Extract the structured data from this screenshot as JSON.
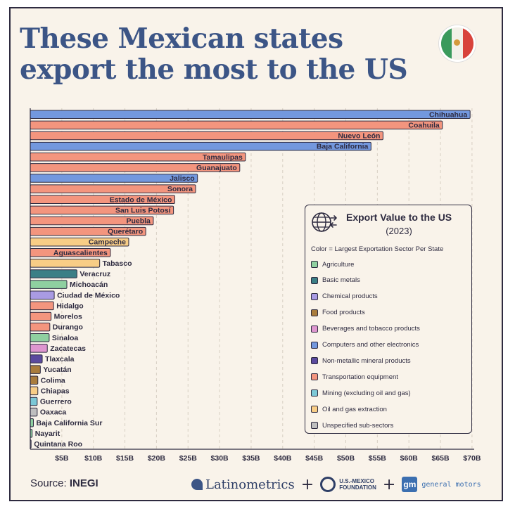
{
  "title_line1": "These Mexican states",
  "title_line2": "export the most to the US",
  "source_label": "Source:",
  "source_name": "INEGI",
  "logos": {
    "latinometrics": "Latinometrics",
    "plus": "+",
    "foundation_line1": "U.S.-MEXICO",
    "foundation_line2": "FOUNDATION",
    "gm_mark": "gm",
    "gm_text": "general motors"
  },
  "legend": {
    "title": "Export Value to the US",
    "year": "(2023)",
    "note": "Color = Largest Exportation Sector Per State"
  },
  "sector_colors": {
    "Agriculture": "#8fd0a0",
    "Basic metals": "#3b7f86",
    "Chemical products": "#a99be3",
    "Food products": "#a97c3c",
    "Beverages and tobacco products": "#de96cf",
    "Computers and other electronics": "#7398de",
    "Non-metallic mineral products": "#5b4a9e",
    "Transportation equipment": "#f3957e",
    "Mining (excluding oil and gas)": "#7cc8d6",
    "Oil and gas extraction": "#f8cd86",
    "Unspecified sub-sectors": "#bfbfbf"
  },
  "chart_data": {
    "type": "bar",
    "orientation": "horizontal",
    "title": "These Mexican states export the most to the US",
    "xlabel": "Export Value to the US (2023)",
    "xlim": [
      0,
      70
    ],
    "xticks": [
      "$5B",
      "$10B",
      "$15B",
      "$20B",
      "$25B",
      "$30B",
      "$35B",
      "$40B",
      "$45B",
      "$50B",
      "$55B",
      "$60B",
      "$65B",
      "$70B"
    ],
    "xtick_values": [
      5,
      10,
      15,
      20,
      25,
      30,
      35,
      40,
      45,
      50,
      55,
      60,
      65,
      70
    ],
    "categories": [
      "Chihuahua",
      "Coahuila",
      "Nuevo León",
      "Baja California",
      "Tamaulipas",
      "Guanajuato",
      "Jalisco",
      "Sonora",
      "Estado de México",
      "San Luis Potosí",
      "Puebla",
      "Querétaro",
      "Campeche",
      "Aguascalientes",
      "Tabasco",
      "Veracruz",
      "Michoacán",
      "Ciudad de México",
      "Hidalgo",
      "Morelos",
      "Durango",
      "Sinaloa",
      "Zacatecas",
      "Tlaxcala",
      "Yucatán",
      "Colima",
      "Chiapas",
      "Guerrero",
      "Oaxaca",
      "Baja California Sur",
      "Nayarit",
      "Quintana Roo"
    ],
    "values": [
      69.7,
      65.3,
      55.9,
      54.0,
      34.1,
      33.2,
      26.5,
      26.2,
      22.9,
      22.7,
      19.5,
      18.3,
      15.6,
      12.7,
      11.0,
      7.4,
      5.8,
      3.8,
      3.7,
      3.3,
      3.1,
      3.0,
      2.7,
      1.9,
      1.6,
      1.2,
      1.2,
      1.1,
      1.1,
      0.5,
      0.3,
      0.1
    ],
    "sectors": [
      "Computers and other electronics",
      "Transportation equipment",
      "Transportation equipment",
      "Computers and other electronics",
      "Transportation equipment",
      "Transportation equipment",
      "Computers and other electronics",
      "Transportation equipment",
      "Transportation equipment",
      "Transportation equipment",
      "Transportation equipment",
      "Transportation equipment",
      "Oil and gas extraction",
      "Transportation equipment",
      "Oil and gas extraction",
      "Basic metals",
      "Agriculture",
      "Chemical products",
      "Transportation equipment",
      "Transportation equipment",
      "Transportation equipment",
      "Agriculture",
      "Beverages and tobacco products",
      "Non-metallic mineral products",
      "Food products",
      "Food products",
      "Oil and gas extraction",
      "Mining (excluding oil and gas)",
      "Unspecified sub-sectors",
      "Agriculture",
      "Agriculture",
      "Unspecified sub-sectors"
    ],
    "legend": [
      "Agriculture",
      "Basic metals",
      "Chemical products",
      "Food products",
      "Beverages and tobacco products",
      "Computers and other electronics",
      "Non-metallic mineral products",
      "Transportation equipment",
      "Mining (excluding oil and gas)",
      "Oil and gas extraction",
      "Unspecified sub-sectors"
    ],
    "grid": true
  }
}
